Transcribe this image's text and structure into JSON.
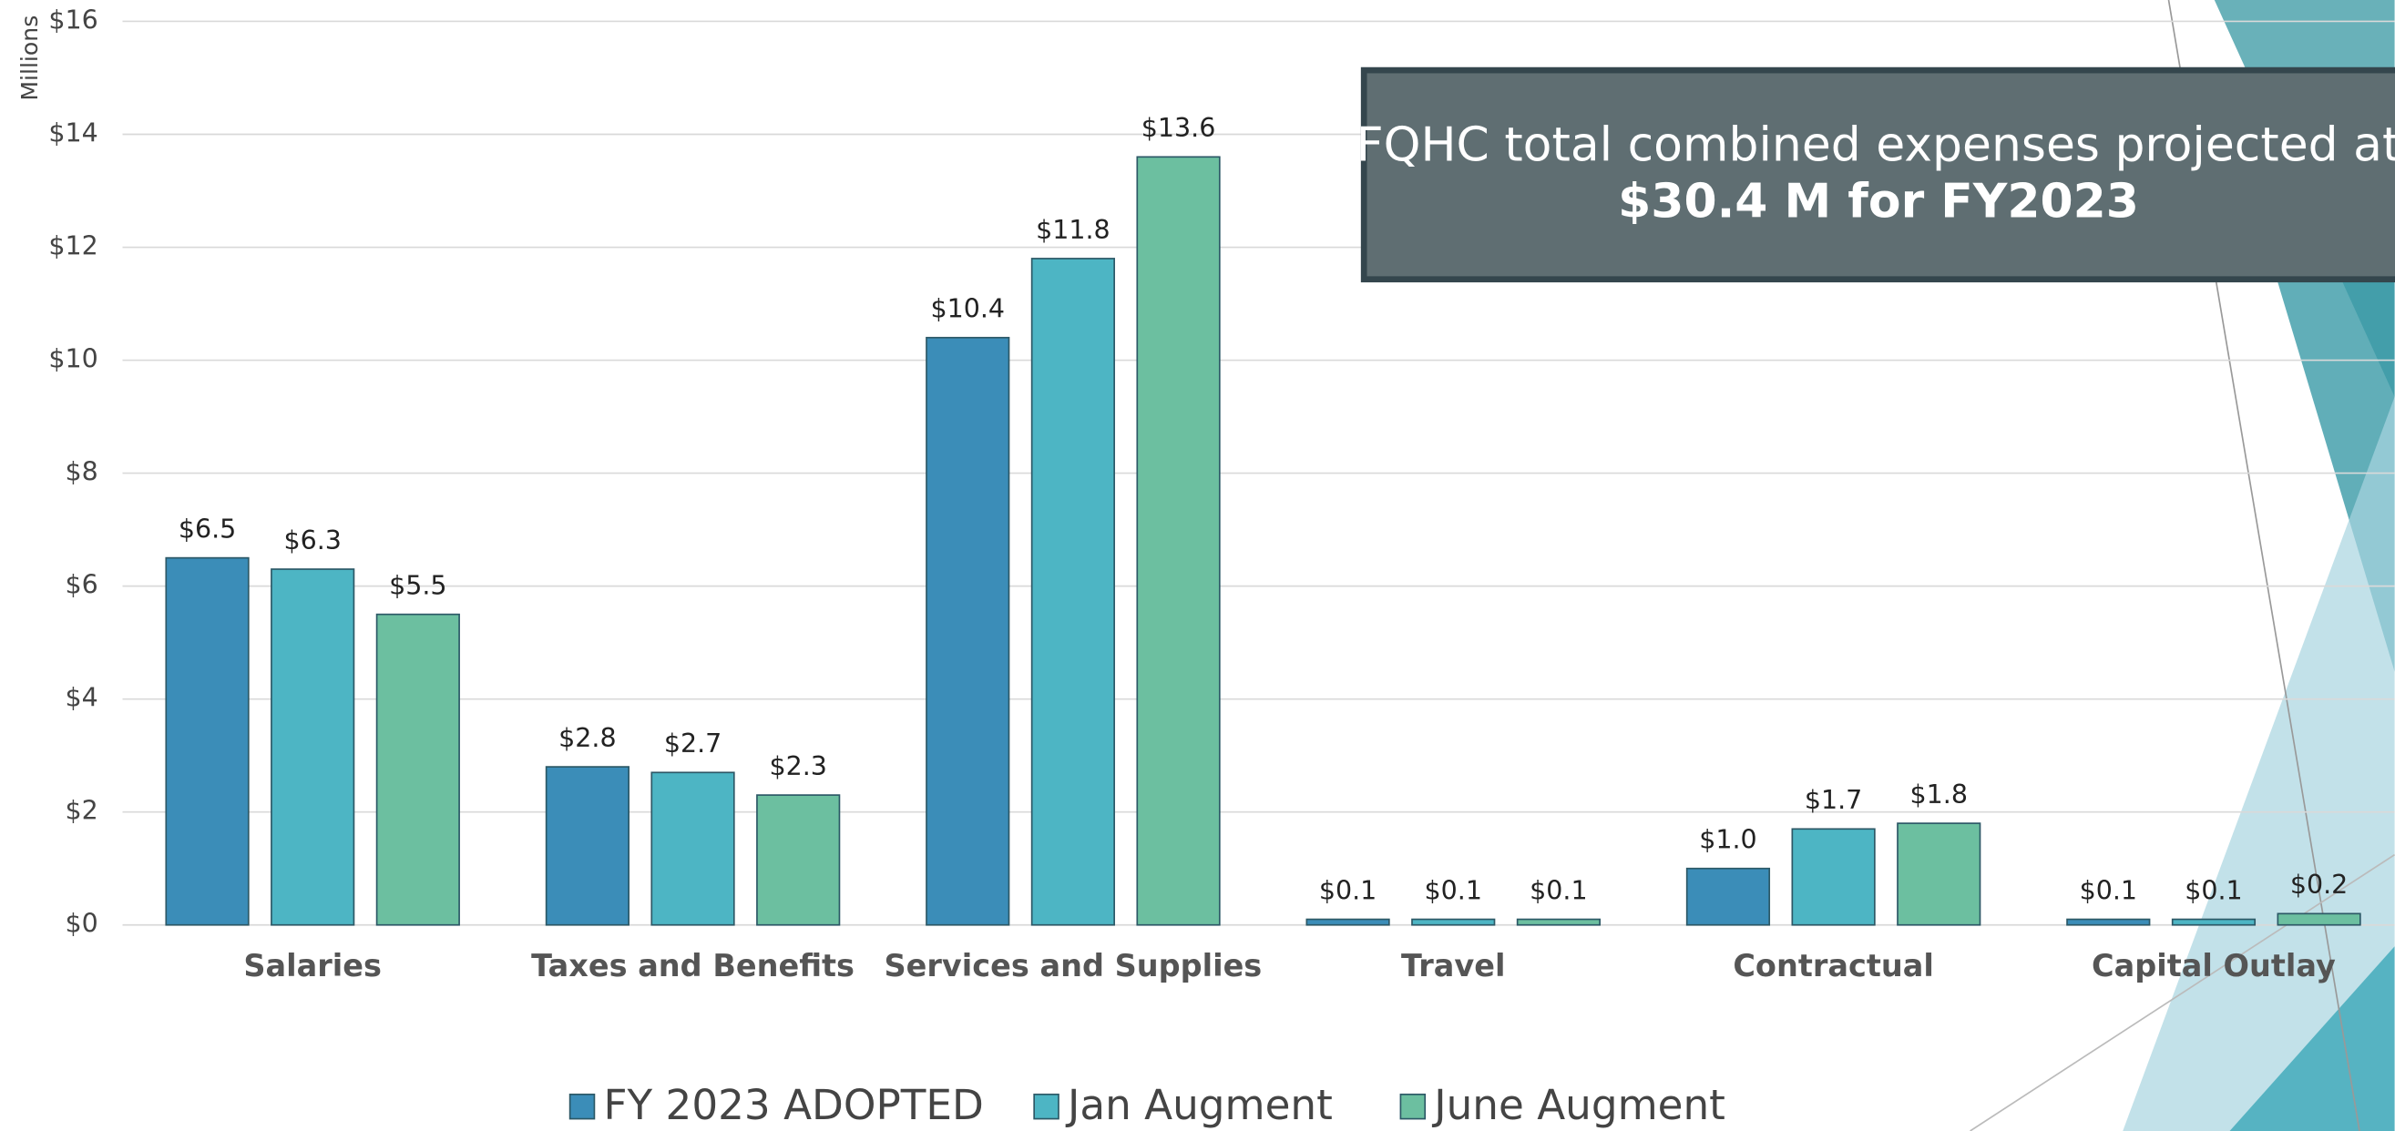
{
  "chart_data": {
    "type": "bar",
    "y_axis_label": "Millions",
    "annotation": {
      "line1": "FQHC total combined expenses projected at",
      "line2": "$30.4 M for FY2023"
    },
    "categories": [
      "Salaries",
      "Taxes and Benefits",
      "Services and Supplies",
      "Travel",
      "Contractual",
      "Capital Outlay"
    ],
    "series": [
      {
        "name": "FY 2023 ADOPTED",
        "color": "#3b8db8",
        "values": [
          6.5,
          2.8,
          10.4,
          0.1,
          1.0,
          0.1
        ],
        "value_labels": [
          "$6.5",
          "$2.8",
          "$10.4",
          "$0.1",
          "$1.0",
          "$0.1"
        ]
      },
      {
        "name": "Jan Augment",
        "color": "#4db5c4",
        "values": [
          6.3,
          2.7,
          11.8,
          0.1,
          1.7,
          0.1
        ],
        "value_labels": [
          "$6.3",
          "$2.7",
          "$11.8",
          "$0.1",
          "$1.7",
          "$0.1"
        ]
      },
      {
        "name": "June Augment",
        "color": "#6cbfa0",
        "values": [
          5.5,
          2.3,
          13.6,
          0.1,
          1.8,
          0.2
        ],
        "value_labels": [
          "$5.5",
          "$2.3",
          "$13.6",
          "$0.1",
          "$1.8",
          "$0.2"
        ]
      }
    ],
    "ylim": [
      0,
      16
    ],
    "yticks": [
      {
        "value": 0,
        "label": "$0"
      },
      {
        "value": 2,
        "label": "$2"
      },
      {
        "value": 4,
        "label": "$4"
      },
      {
        "value": 6,
        "label": "$6"
      },
      {
        "value": 8,
        "label": "$8"
      },
      {
        "value": 10,
        "label": "$10"
      },
      {
        "value": 12,
        "label": "$12"
      },
      {
        "value": 14,
        "label": "$14"
      },
      {
        "value": 16,
        "label": "$16"
      }
    ],
    "grid": true,
    "legend": "bottom"
  }
}
